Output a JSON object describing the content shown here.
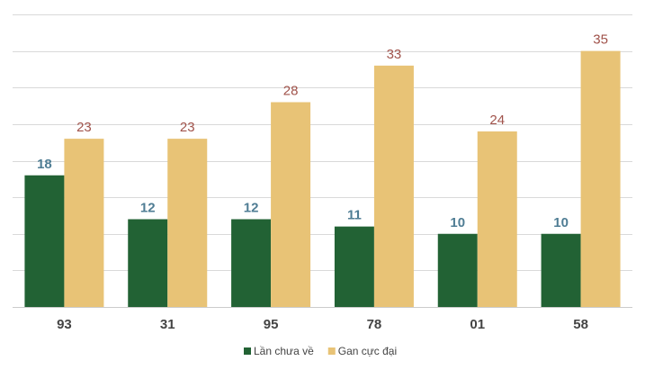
{
  "chart_data": {
    "type": "bar",
    "categories": [
      "93",
      "31",
      "95",
      "78",
      "01",
      "58"
    ],
    "series": [
      {
        "name": "Lần chưa về",
        "values": [
          18,
          12,
          12,
          11,
          10,
          10
        ],
        "color": "#226234",
        "label_color": "#4f7d94"
      },
      {
        "name": "Gan cực đại",
        "values": [
          23,
          23,
          28,
          33,
          24,
          35
        ],
        "color": "#e8c376",
        "label_color": "#a0524a"
      }
    ],
    "ylim": [
      0,
      40
    ],
    "grid": true,
    "legend_position": "bottom-center",
    "title": "",
    "xlabel": "",
    "ylabel": ""
  }
}
